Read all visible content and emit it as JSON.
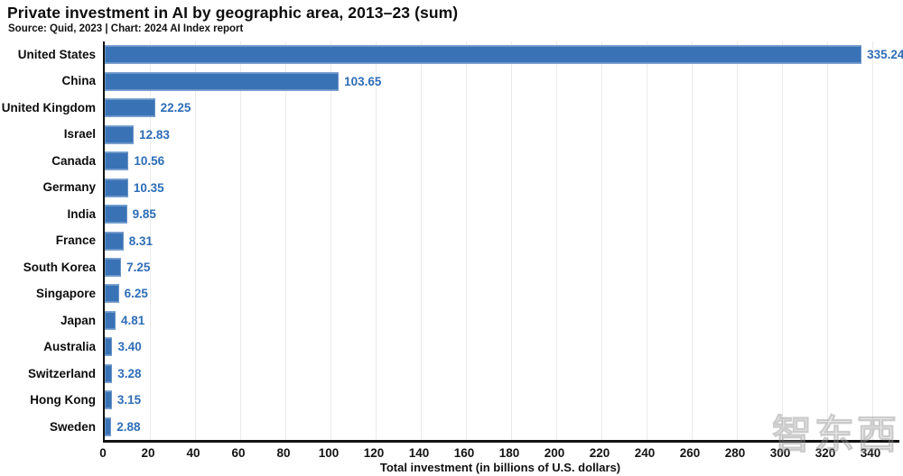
{
  "header": {
    "title": "Private investment in AI by geographic area, 2013–23 (sum)",
    "subtitle": "Source: Quid, 2023 | Chart: 2024 AI Index report"
  },
  "chart_data": {
    "type": "bar",
    "orientation": "horizontal",
    "title": "Private investment in AI by geographic area, 2013–23 (sum)",
    "subtitle": "Source: Quid, 2023 | Chart: 2024 AI Index report",
    "categories": [
      "United States",
      "China",
      "United Kingdom",
      "Israel",
      "Canada",
      "Germany",
      "India",
      "France",
      "South Korea",
      "Singapore",
      "Japan",
      "Australia",
      "Switzerland",
      "Hong Kong",
      "Sweden"
    ],
    "values": [
      335.24,
      103.65,
      22.25,
      12.83,
      10.56,
      10.35,
      9.85,
      8.31,
      7.25,
      6.25,
      4.81,
      3.4,
      3.28,
      3.15,
      2.88
    ],
    "value_labels": [
      "335.24",
      "103.65",
      "22.25",
      "12.83",
      "10.56",
      "10.35",
      "9.85",
      "8.31",
      "7.25",
      "6.25",
      "4.81",
      "3.40",
      "3.28",
      "3.15",
      "2.88"
    ],
    "xlabel": "Total investment (in billions of U.S. dollars)",
    "xlim": [
      0,
      352
    ],
    "xticks": [
      0,
      20,
      40,
      60,
      80,
      100,
      120,
      140,
      160,
      180,
      200,
      220,
      240,
      260,
      280,
      300,
      320,
      340
    ],
    "grid": true,
    "legend": "none",
    "bar_color": "#3a73b5",
    "value_label_color": "#2e6db7"
  },
  "watermark": {
    "text": "智东西"
  }
}
